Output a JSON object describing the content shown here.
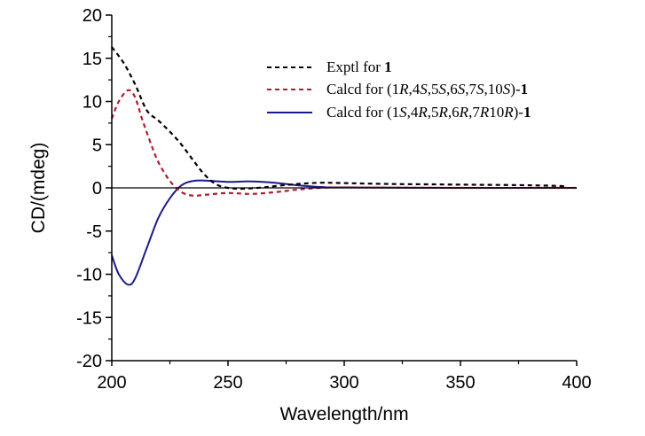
{
  "chart_data": {
    "type": "line",
    "title": "",
    "xlabel": "Wavelength/nm",
    "ylabel": "CD/(mdeg)",
    "xlim": [
      200,
      400
    ],
    "ylim": [
      -20,
      20
    ],
    "x_ticks": [
      200,
      250,
      300,
      350,
      400
    ],
    "x_tick_labels": [
      "200",
      "250",
      "300",
      "350",
      "400"
    ],
    "y_ticks": [
      20,
      15,
      10,
      5,
      0,
      -5,
      -10,
      -15,
      -20
    ],
    "y_tick_labels": [
      "20",
      "15",
      "10",
      "5",
      "0",
      "-5",
      "-10",
      "-15",
      "-20"
    ],
    "grid": false,
    "zero_line": true,
    "legend_position": "top-right",
    "series": [
      {
        "name": "Exptl for 1",
        "legend": {
          "prefix": "Exptl for ",
          "parts": [],
          "suffix_bold": "1"
        },
        "color": "#000000",
        "style": "dashed",
        "x": [
          200,
          205,
          210,
          215,
          220,
          225,
          230,
          235,
          240,
          245,
          250,
          255,
          260,
          265,
          270,
          280,
          290,
          300,
          320,
          340,
          360,
          380,
          395
        ],
        "y": [
          16.3,
          14.5,
          12.0,
          9.0,
          7.8,
          6.5,
          5.0,
          3.2,
          1.5,
          0.4,
          0.0,
          -0.1,
          -0.05,
          0.05,
          0.2,
          0.45,
          0.6,
          0.55,
          0.45,
          0.4,
          0.35,
          0.3,
          0.2
        ]
      },
      {
        "name": "Calcd for (1R,4S,5S,6S,7S,10S)-1",
        "legend": {
          "prefix": "Calcd for (",
          "parts": [
            [
              "1",
              ""
            ],
            [
              "R",
              "i"
            ],
            [
              ",4",
              ""
            ],
            [
              "S",
              "i"
            ],
            [
              ",5",
              ""
            ],
            [
              "S",
              "i"
            ],
            [
              ",6",
              ""
            ],
            [
              "S",
              "i"
            ],
            [
              ",7",
              ""
            ],
            [
              "S",
              "i"
            ],
            [
              ",10",
              ""
            ],
            [
              "S",
              "i"
            ],
            [
              ")",
              ""
            ]
          ],
          "suffix_bold": "1"
        },
        "color": "#b01c2e",
        "style": "dashed",
        "x": [
          200,
          203,
          207,
          210,
          213,
          217,
          220,
          225,
          230,
          235,
          240,
          250,
          260,
          270,
          280,
          290,
          300,
          350,
          400
        ],
        "y": [
          8.0,
          10.0,
          11.3,
          10.5,
          8.0,
          5.0,
          3.0,
          0.8,
          -0.5,
          -0.9,
          -0.8,
          -0.6,
          -0.7,
          -0.5,
          -0.2,
          0.0,
          0.05,
          0.0,
          0.0
        ]
      },
      {
        "name": "Calcd for (1S,4R,5R,6R,7R10R)-1",
        "legend": {
          "prefix": "Calcd for (",
          "parts": [
            [
              "1",
              ""
            ],
            [
              "S",
              "i"
            ],
            [
              ",4",
              ""
            ],
            [
              "R",
              "i"
            ],
            [
              ",5",
              ""
            ],
            [
              "R",
              "i"
            ],
            [
              ",6",
              ""
            ],
            [
              "R",
              "i"
            ],
            [
              ",7",
              ""
            ],
            [
              "R",
              "i"
            ],
            [
              "10",
              ""
            ],
            [
              "R",
              "i"
            ],
            [
              ")",
              ""
            ]
          ],
          "suffix_bold": "1"
        },
        "color": "#1a1a8c",
        "style": "solid",
        "x": [
          200,
          203,
          207,
          210,
          215,
          220,
          225,
          230,
          235,
          240,
          250,
          260,
          270,
          280,
          290,
          300,
          350,
          400
        ],
        "y": [
          -7.8,
          -10.0,
          -11.2,
          -10.5,
          -7.0,
          -3.5,
          -1.2,
          0.3,
          0.8,
          0.85,
          0.7,
          0.75,
          0.6,
          0.3,
          0.1,
          0.05,
          0.0,
          0.0
        ]
      }
    ]
  }
}
